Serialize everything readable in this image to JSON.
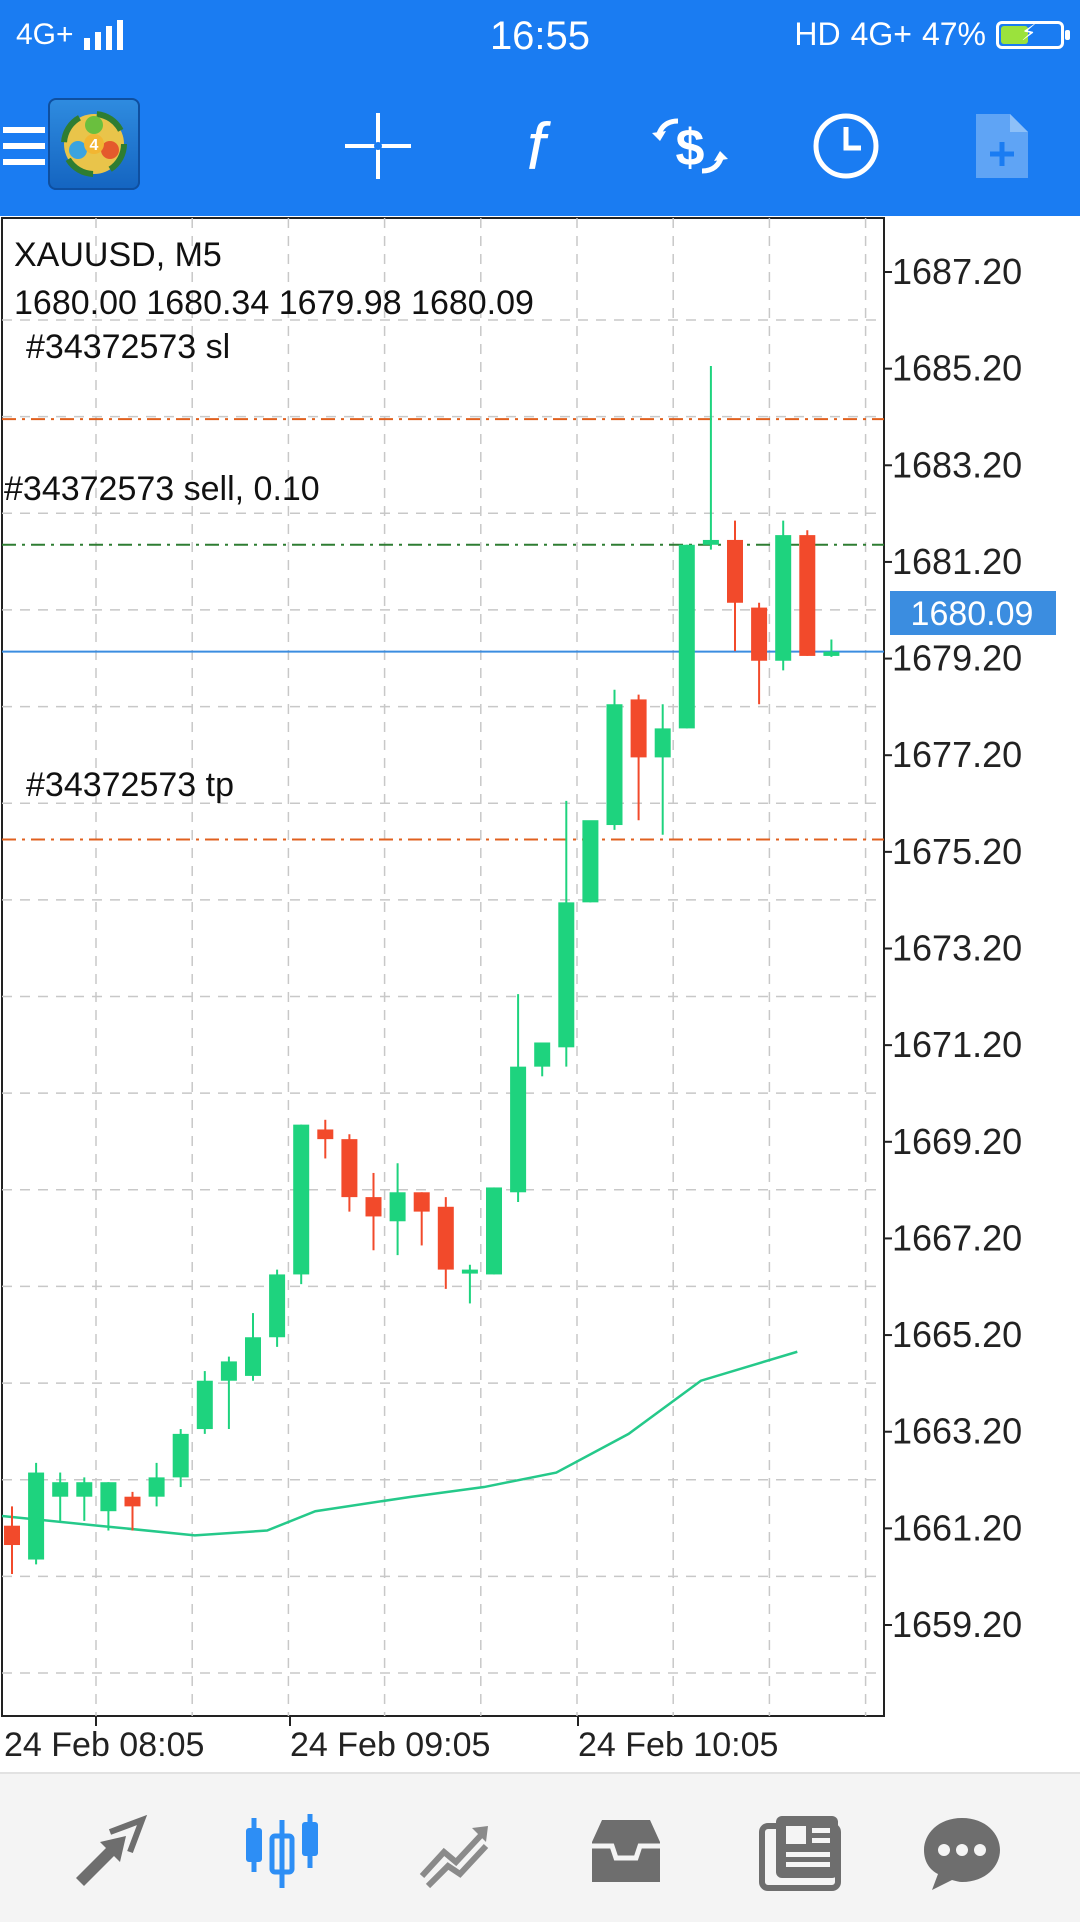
{
  "status_bar": {
    "network": "4G+",
    "time": "16:55",
    "hd": "HD",
    "network_right": "4G+",
    "battery": "47%",
    "battery_level": 0.47
  },
  "toolbar": {
    "icons": [
      "menu-icon",
      "app-logo",
      "crosshair-icon",
      "indicators-icon",
      "trade-icon",
      "timeframe-icon",
      "add-template-icon"
    ]
  },
  "chart": {
    "symbol_label": "XAUUSD, M5",
    "ohlc_label": "1680.00 1680.34 1679.98 1680.09",
    "sl_label": "#34372573 sl",
    "order_label": "#34372573 sell, 0.10",
    "tp_label": "#34372573 tp",
    "current_price_label": "1680.09",
    "colors": {
      "bull": "#1ed37e",
      "bear": "#f24a2b",
      "ma": "#25c98a",
      "bid_line": "#3b8de0",
      "sl_line": "#e0601f",
      "order_line": "#2e7d32",
      "grid": "#c8c8c8",
      "price_tag": "#3b8de0"
    }
  },
  "chart_data": {
    "type": "candlestick",
    "symbol": "XAUUSD",
    "timeframe": "M5",
    "ylim": [
      1657.5,
      1688.5
    ],
    "y_ticks": [
      "1687.20",
      "1685.20",
      "1683.20",
      "1681.20",
      "1679.20",
      "1677.20",
      "1675.20",
      "1673.20",
      "1671.20",
      "1669.20",
      "1667.20",
      "1665.20",
      "1663.20",
      "1661.20",
      "1659.20"
    ],
    "x_tick_labels": [
      "24 Feb 08:05",
      "24 Feb 09:05",
      "24 Feb 10:05"
    ],
    "x_tick_candle_index": [
      0.5,
      12.5,
      24.5
    ],
    "candles": [
      {
        "o": 1662.0,
        "h": 1662.4,
        "l": 1661.0,
        "c": 1661.6
      },
      {
        "o": 1661.3,
        "h": 1663.3,
        "l": 1661.2,
        "c": 1663.1
      },
      {
        "o": 1662.6,
        "h": 1663.1,
        "l": 1662.1,
        "c": 1662.9
      },
      {
        "o": 1662.6,
        "h": 1663.0,
        "l": 1662.1,
        "c": 1662.9
      },
      {
        "o": 1662.3,
        "h": 1662.9,
        "l": 1661.9,
        "c": 1662.9
      },
      {
        "o": 1662.6,
        "h": 1662.7,
        "l": 1661.9,
        "c": 1662.4
      },
      {
        "o": 1662.6,
        "h": 1663.3,
        "l": 1662.4,
        "c": 1663.0
      },
      {
        "o": 1663.0,
        "h": 1664.0,
        "l": 1662.8,
        "c": 1663.9
      },
      {
        "o": 1664.0,
        "h": 1665.2,
        "l": 1663.9,
        "c": 1665.0
      },
      {
        "o": 1665.0,
        "h": 1665.5,
        "l": 1664.0,
        "c": 1665.4
      },
      {
        "o": 1665.1,
        "h": 1666.4,
        "l": 1665.0,
        "c": 1665.9
      },
      {
        "o": 1665.9,
        "h": 1667.3,
        "l": 1665.7,
        "c": 1667.2
      },
      {
        "o": 1667.2,
        "h": 1670.3,
        "l": 1667.0,
        "c": 1670.3
      },
      {
        "o": 1670.2,
        "h": 1670.4,
        "l": 1669.6,
        "c": 1670.0
      },
      {
        "o": 1670.0,
        "h": 1670.1,
        "l": 1668.5,
        "c": 1668.8
      },
      {
        "o": 1668.8,
        "h": 1669.3,
        "l": 1667.7,
        "c": 1668.4
      },
      {
        "o": 1668.3,
        "h": 1669.5,
        "l": 1667.6,
        "c": 1668.9
      },
      {
        "o": 1668.9,
        "h": 1668.9,
        "l": 1667.8,
        "c": 1668.5
      },
      {
        "o": 1668.6,
        "h": 1668.8,
        "l": 1666.9,
        "c": 1667.3
      },
      {
        "o": 1667.3,
        "h": 1667.4,
        "l": 1666.6,
        "c": 1667.3
      },
      {
        "o": 1667.2,
        "h": 1669.0,
        "l": 1667.2,
        "c": 1669.0
      },
      {
        "o": 1668.9,
        "h": 1673.0,
        "l": 1668.7,
        "c": 1671.5
      },
      {
        "o": 1671.5,
        "h": 1672.0,
        "l": 1671.3,
        "c": 1672.0
      },
      {
        "o": 1671.9,
        "h": 1677.0,
        "l": 1671.5,
        "c": 1674.9
      },
      {
        "o": 1674.9,
        "h": 1676.3,
        "l": 1674.9,
        "c": 1676.6
      },
      {
        "o": 1676.5,
        "h": 1679.3,
        "l": 1676.4,
        "c": 1679.0
      },
      {
        "o": 1679.1,
        "h": 1679.2,
        "l": 1676.6,
        "c": 1677.9
      },
      {
        "o": 1677.9,
        "h": 1679.0,
        "l": 1676.3,
        "c": 1678.5
      },
      {
        "o": 1678.5,
        "h": 1682.3,
        "l": 1678.5,
        "c": 1682.3
      },
      {
        "o": 1682.3,
        "h": 1686.0,
        "l": 1682.2,
        "c": 1682.4
      },
      {
        "o": 1682.4,
        "h": 1682.8,
        "l": 1680.1,
        "c": 1681.1
      },
      {
        "o": 1681.0,
        "h": 1681.1,
        "l": 1679.0,
        "c": 1679.9
      },
      {
        "o": 1679.9,
        "h": 1682.8,
        "l": 1679.7,
        "c": 1682.5
      },
      {
        "o": 1682.5,
        "h": 1682.6,
        "l": 1680.0,
        "c": 1680.0
      },
      {
        "o": 1680.0,
        "h": 1680.34,
        "l": 1679.98,
        "c": 1680.09
      }
    ],
    "moving_average": [
      [
        0,
        1662.2
      ],
      [
        4,
        1662.0
      ],
      [
        8,
        1661.8
      ],
      [
        11,
        1661.9
      ],
      [
        13,
        1662.3
      ],
      [
        17,
        1662.6
      ],
      [
        20,
        1662.8
      ],
      [
        23,
        1663.1
      ],
      [
        26,
        1663.9
      ],
      [
        29,
        1665.0
      ],
      [
        33,
        1665.6
      ]
    ],
    "levels": {
      "sl": 1684.9,
      "order": 1682.3,
      "bid": 1680.09,
      "tp": 1676.2
    }
  },
  "bottom_nav": {
    "items": [
      "quotes-icon",
      "chart-icon",
      "trade-icon",
      "history-icon",
      "news-icon",
      "chat-icon"
    ],
    "active": "chart-icon"
  }
}
